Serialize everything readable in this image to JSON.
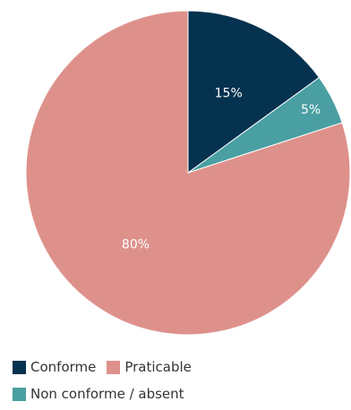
{
  "chart_data": {
    "type": "pie",
    "slices": [
      {
        "name": "Conforme",
        "value": 15,
        "label": "15%",
        "color": "#05324f"
      },
      {
        "name": "Non conforme / absent",
        "value": 5,
        "label": "5%",
        "color": "#4a9fa2"
      },
      {
        "name": "Praticable",
        "value": 80,
        "label": "80%",
        "color": "#de918b"
      }
    ],
    "start": "12 o'clock",
    "direction": "clockwise",
    "legend_placement": "bottom-left"
  },
  "legend": {
    "rows": [
      [
        {
          "label": "Conforme",
          "color": "#05324f"
        },
        {
          "label": "Praticable",
          "color": "#de918b"
        }
      ],
      [
        {
          "label": "Non conforme / absent",
          "color": "#4a9fa2"
        }
      ]
    ]
  }
}
